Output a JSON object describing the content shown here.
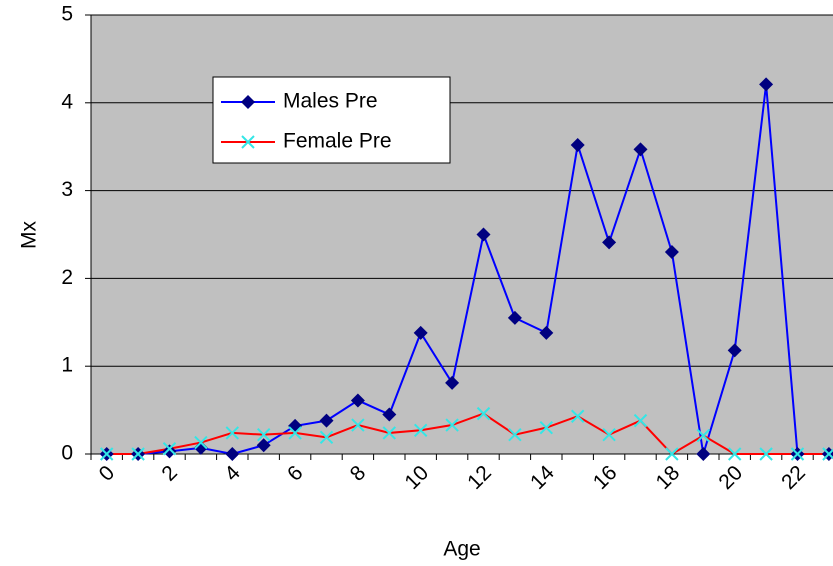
{
  "chart_data": {
    "type": "line",
    "x_label": "Age",
    "y_label": "Mx",
    "categories": [
      "0",
      null,
      "2",
      null,
      "4",
      null,
      "6",
      null,
      "8",
      null,
      "10",
      null,
      "12",
      null,
      "14",
      null,
      "16",
      null,
      "18",
      null,
      "20",
      null,
      "22",
      null
    ],
    "series": [
      {
        "name": "Males Pre",
        "color": "#0000ff",
        "marker_color": "#000080",
        "marker": "diamond",
        "values": [
          0,
          0,
          0.03,
          0.07,
          0,
          0.1,
          0.32,
          0.38,
          0.61,
          0.45,
          1.38,
          0.81,
          2.5,
          1.55,
          1.38,
          3.52,
          2.41,
          3.47,
          2.3,
          0,
          1.18,
          4.21,
          0,
          0
        ]
      },
      {
        "name": "Female Pre",
        "color": "#ff0000",
        "marker_color": "#33e6e6",
        "marker": "x",
        "values": [
          0,
          0,
          0.06,
          0.13,
          0.24,
          0.22,
          0.24,
          0.19,
          0.33,
          0.24,
          0.27,
          0.33,
          0.46,
          0.22,
          0.3,
          0.43,
          0.22,
          0.38,
          0,
          0.21,
          0,
          0,
          0,
          0
        ]
      }
    ],
    "ylim": [
      0,
      5
    ],
    "yticks": [
      0,
      1,
      2,
      3,
      4,
      5
    ],
    "grid": true,
    "legend": "upper-left",
    "background": "#c0c0c0"
  }
}
